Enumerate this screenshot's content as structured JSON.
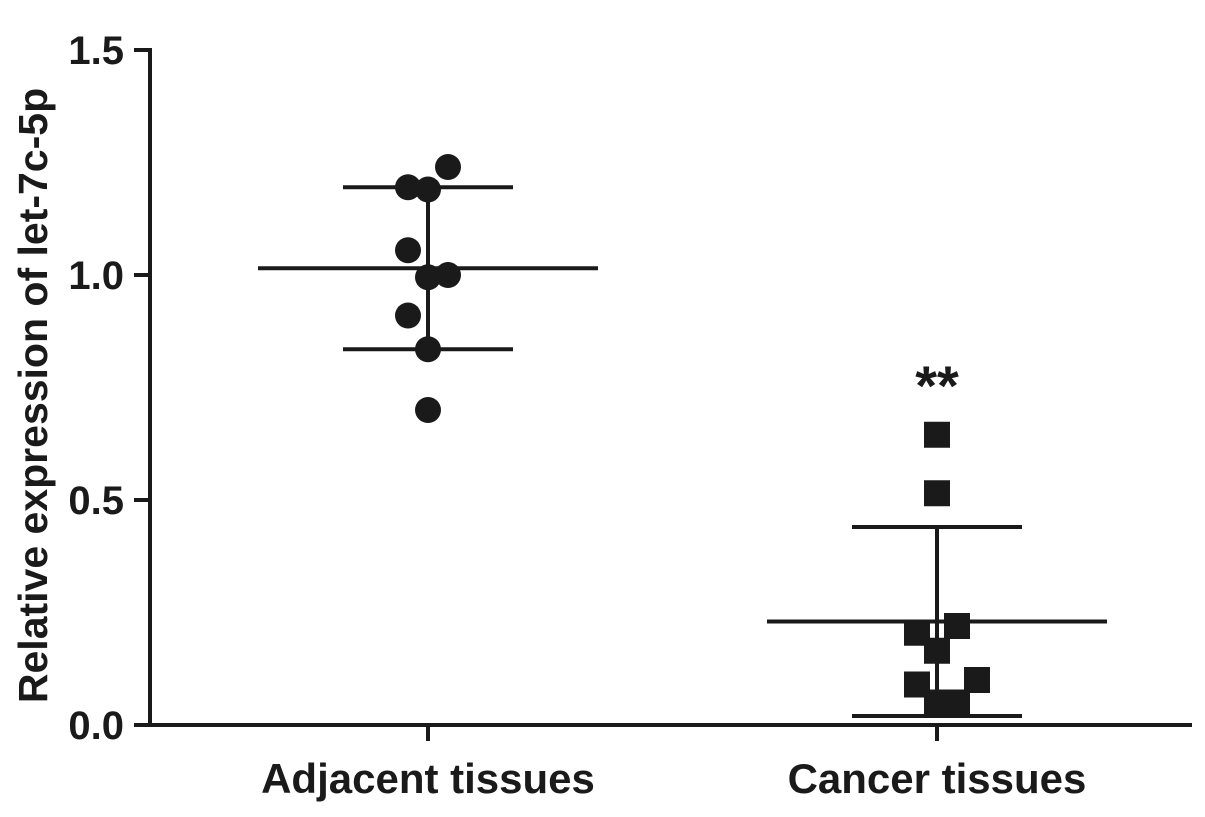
{
  "chart_data": {
    "type": "scatter",
    "ylabel": "Relative expression of let-7c-5p",
    "ylim": [
      0,
      1.5
    ],
    "yticks": [
      "0.0",
      "0.5",
      "1.0",
      "1.5"
    ],
    "categories": [
      "Adjacent tissues",
      "Cancer tissues"
    ],
    "series": [
      {
        "category": "Adjacent tissues",
        "marker": "circle",
        "points": [
          {
            "x": -0.08,
            "y": 1.195
          },
          {
            "x": 0.0,
            "y": 1.19
          },
          {
            "x": 0.08,
            "y": 1.24
          },
          {
            "x": -0.08,
            "y": 1.055
          },
          {
            "x": 0.0,
            "y": 0.995
          },
          {
            "x": 0.08,
            "y": 1.0
          },
          {
            "x": -0.08,
            "y": 0.91
          },
          {
            "x": 0.0,
            "y": 0.835
          },
          {
            "x": 0.0,
            "y": 0.7
          }
        ],
        "mean": 1.015,
        "sd_upper": 1.195,
        "sd_lower": 0.835
      },
      {
        "category": "Cancer tissues",
        "marker": "square",
        "points": [
          {
            "x": 0.0,
            "y": 0.645
          },
          {
            "x": 0.0,
            "y": 0.515
          },
          {
            "x": -0.08,
            "y": 0.205
          },
          {
            "x": 0.08,
            "y": 0.22
          },
          {
            "x": 0.0,
            "y": 0.165
          },
          {
            "x": -0.08,
            "y": 0.09
          },
          {
            "x": 0.16,
            "y": 0.1
          },
          {
            "x": 0.0,
            "y": 0.05
          },
          {
            "x": 0.08,
            "y": 0.05
          }
        ],
        "mean": 0.23,
        "sd_upper": 0.44,
        "sd_lower": 0.02
      }
    ],
    "annotations": [
      {
        "category": "Cancer tissues",
        "text": "**",
        "y": 0.8
      }
    ]
  }
}
